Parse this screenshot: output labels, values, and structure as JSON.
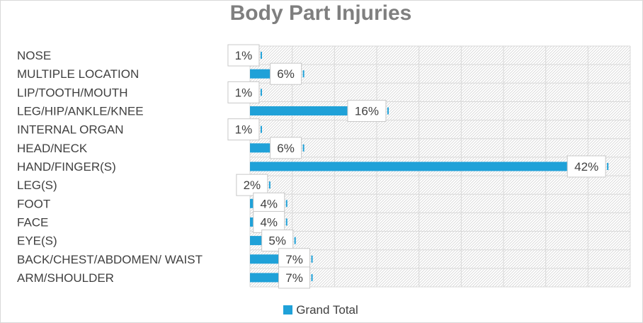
{
  "colors": {
    "bar": "#1fa1d8",
    "title": "#7f7f7f",
    "text": "#404040",
    "grid": "#d9d9d9"
  },
  "chart_data": {
    "type": "bar",
    "orientation": "horizontal",
    "title": "Body Part Injuries",
    "categories": [
      "NOSE",
      "MULTIPLE LOCATION",
      "LIP/TOOTH/MOUTH",
      "LEG/HIP/ANKLE/KNEE",
      "INTERNAL ORGAN",
      "HEAD/NECK",
      "HAND/FINGER(S)",
      "LEG(S)",
      "FOOT",
      "FACE",
      "EYE(S)",
      "BACK/CHEST/ABDOMEN/ WAIST",
      "ARM/SHOULDER"
    ],
    "series": [
      {
        "name": "Grand Total",
        "values": [
          1,
          6,
          1,
          16,
          1,
          6,
          42,
          2,
          4,
          4,
          5,
          7,
          7
        ]
      }
    ],
    "data_labels": [
      "1%",
      "6%",
      "1%",
      "16%",
      "1%",
      "6%",
      "42%",
      "2%",
      "4%",
      "4%",
      "5%",
      "7%",
      "7%"
    ],
    "xlim": [
      0,
      45
    ],
    "grid": true,
    "legend_position": "bottom"
  }
}
